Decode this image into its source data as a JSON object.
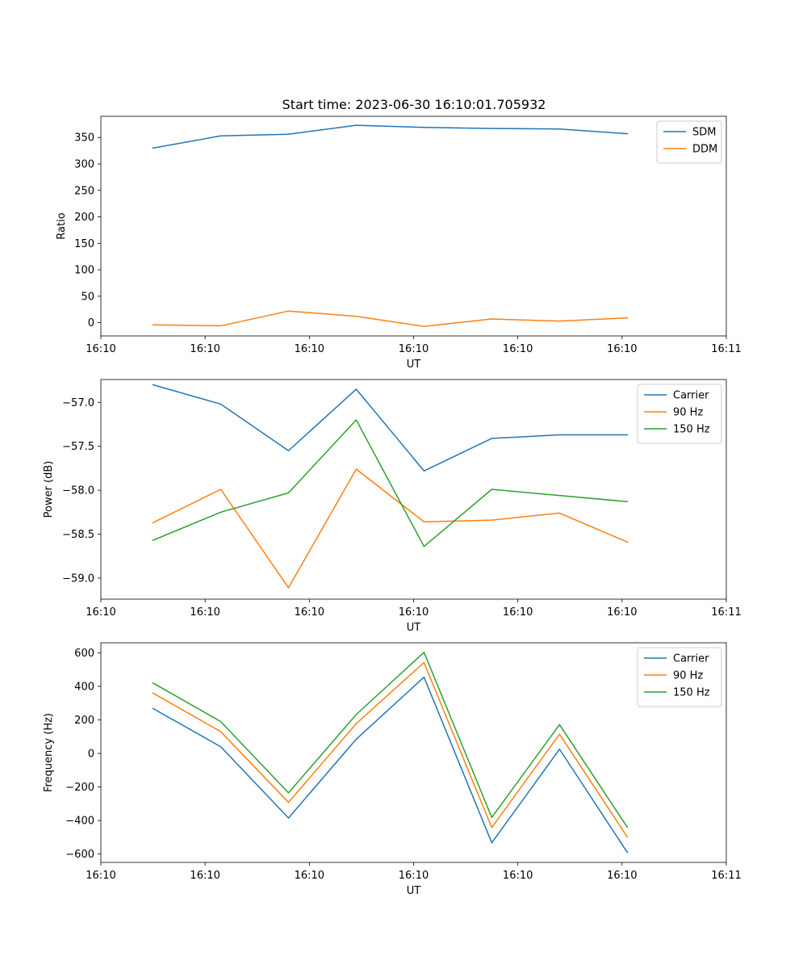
{
  "figure": {
    "title": "Start time: 2023-06-30 16:10:01.705932"
  },
  "chart_data": [
    {
      "type": "line",
      "id": "ratio",
      "xlabel": "UT",
      "ylabel": "Ratio",
      "x": [
        0.5,
        1.15,
        1.8,
        2.45,
        3.1,
        3.75,
        4.4,
        5.05
      ],
      "xlim": [
        0.0,
        6.0
      ],
      "x_ticks": [
        0,
        1,
        2,
        3,
        4,
        5,
        6
      ],
      "x_tick_labels": [
        "16:10",
        "16:10",
        "16:10",
        "16:10",
        "16:10",
        "16:10",
        "16:11"
      ],
      "ylim": [
        -25,
        390
      ],
      "y_ticks": [
        0,
        50,
        100,
        150,
        200,
        250,
        300,
        350
      ],
      "y_tick_labels": [
        "0",
        "50",
        "100",
        "150",
        "200",
        "250",
        "300",
        "350"
      ],
      "legend": "top-right",
      "series": [
        {
          "name": "SDM",
          "color": "#1f77b4",
          "values": [
            330,
            353,
            356,
            373,
            369,
            367,
            366,
            357
          ]
        },
        {
          "name": "DDM",
          "color": "#ff7f0e",
          "values": [
            -4,
            -6,
            22,
            12,
            -7,
            7,
            3,
            9
          ]
        }
      ]
    },
    {
      "type": "line",
      "id": "power",
      "xlabel": "UT",
      "ylabel": "Power (dB)",
      "x": [
        0.5,
        1.15,
        1.8,
        2.45,
        3.1,
        3.75,
        4.4,
        5.05
      ],
      "xlim": [
        0.0,
        6.0
      ],
      "x_ticks": [
        0,
        1,
        2,
        3,
        4,
        5,
        6
      ],
      "x_tick_labels": [
        "16:10",
        "16:10",
        "16:10",
        "16:10",
        "16:10",
        "16:10",
        "16:11"
      ],
      "ylim": [
        -59.24,
        -56.74
      ],
      "y_ticks": [
        -59.0,
        -58.5,
        -58.0,
        -57.5,
        -57.0
      ],
      "y_tick_labels": [
        "−59.0",
        "−58.5",
        "−58.0",
        "−57.5",
        "−57.0"
      ],
      "legend": "top-right",
      "series": [
        {
          "name": "Carrier",
          "color": "#1f77b4",
          "values": [
            -56.8,
            -57.02,
            -57.55,
            -56.85,
            -57.78,
            -57.41,
            -57.37,
            -57.37
          ]
        },
        {
          "name": "90 Hz",
          "color": "#ff7f0e",
          "values": [
            -58.37,
            -57.99,
            -59.11,
            -57.76,
            -58.36,
            -58.34,
            -58.26,
            -58.59
          ]
        },
        {
          "name": "150 Hz",
          "color": "#2ca02c",
          "values": [
            -58.57,
            -58.25,
            -58.03,
            -57.2,
            -58.64,
            -57.99,
            -58.06,
            -58.13
          ]
        }
      ]
    },
    {
      "type": "line",
      "id": "frequency",
      "xlabel": "UT",
      "ylabel": "Frequency (Hz)",
      "x": [
        0.5,
        1.15,
        1.8,
        2.45,
        3.1,
        3.75,
        4.4,
        5.05
      ],
      "xlim": [
        0.0,
        6.0
      ],
      "x_ticks": [
        0,
        1,
        2,
        3,
        4,
        5,
        6
      ],
      "x_tick_labels": [
        "16:10",
        "16:10",
        "16:10",
        "16:10",
        "16:10",
        "16:10",
        "16:11"
      ],
      "ylim": [
        -650,
        660
      ],
      "y_ticks": [
        -600,
        -400,
        -200,
        0,
        200,
        400,
        600
      ],
      "y_tick_labels": [
        "−600",
        "−400",
        "−200",
        "0",
        "200",
        "400",
        "600"
      ],
      "legend": "top-right",
      "series": [
        {
          "name": "Carrier",
          "color": "#1f77b4",
          "values": [
            268,
            40,
            -385,
            85,
            455,
            -533,
            25,
            -590
          ]
        },
        {
          "name": "90 Hz",
          "color": "#ff7f0e",
          "values": [
            360,
            130,
            -292,
            178,
            542,
            -442,
            115,
            -498
          ]
        },
        {
          "name": "150 Hz",
          "color": "#2ca02c",
          "values": [
            420,
            190,
            -235,
            232,
            603,
            -382,
            172,
            -440
          ]
        }
      ]
    }
  ]
}
